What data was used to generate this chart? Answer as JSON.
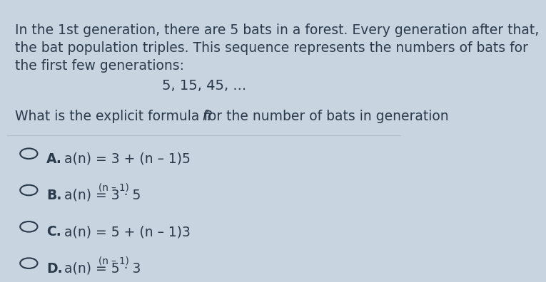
{
  "background_color": "#c8d4e0",
  "paragraph_text": "In the 1st generation, there are 5 bats in a forest. Every generation after that,\nthe bat population triples. This sequence represents the numbers of bats for\nthe first few generations:",
  "sequence_text": "5, 15, 45, ...",
  "question_text": "What is the explicit formula for the number of bats in generation ",
  "question_italic": "n",
  "question_end": "?",
  "options": [
    {
      "label": "A.",
      "main": "a(n) = 3 + (n – 1)5",
      "has_superscript": false
    },
    {
      "label": "B.",
      "main": "a(n) = 3 · 5",
      "superscript": "(n – 1)",
      "has_superscript": true
    },
    {
      "label": "C.",
      "main": "a(n) = 5 + (n – 1)3",
      "has_superscript": false
    },
    {
      "label": "D.",
      "main": "a(n) = 5 · 3",
      "superscript": "(n – 1)",
      "has_superscript": true
    }
  ],
  "text_color": "#2a3a4a",
  "divider_color": "#b0bec5",
  "circle_color": "#2a3a4a",
  "font_size_paragraph": 13.5,
  "font_size_sequence": 14,
  "font_size_question": 13.5,
  "font_size_options": 13.5
}
